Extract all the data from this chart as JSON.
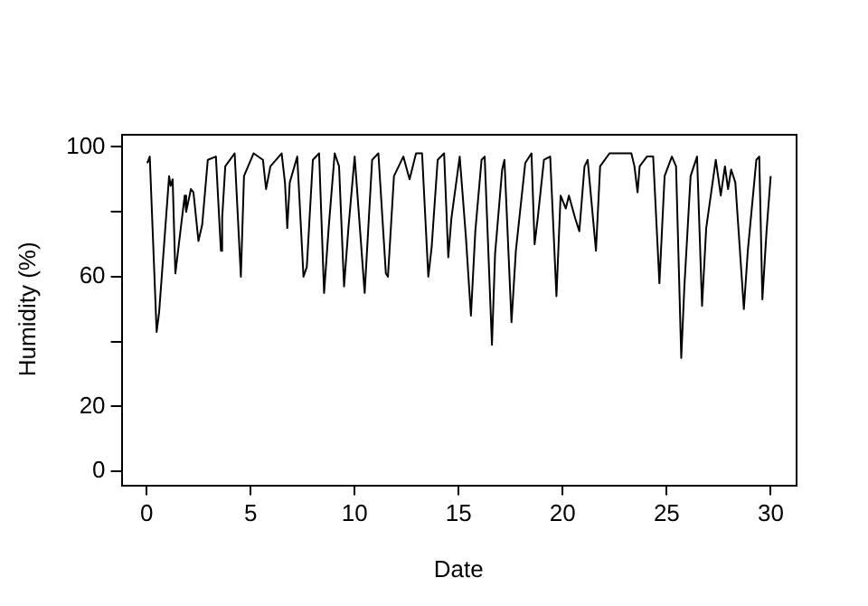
{
  "chart_data": {
    "type": "line",
    "xlabel": "Date",
    "ylabel": "Humidity (%)",
    "xlim": [
      -1.2,
      31.2
    ],
    "ylim": [
      -4,
      104
    ],
    "xticks": [
      0,
      5,
      10,
      15,
      20,
      25,
      30
    ],
    "yticks": [
      0,
      20,
      {
        "value": 40,
        "label": null
      },
      60,
      {
        "value": 80,
        "label": null
      },
      100
    ],
    "grid": false,
    "legend": false,
    "marker": "none",
    "line_style": "solid",
    "series": [
      {
        "color": "#000000",
        "x": [
          0.03,
          0.15,
          0.48,
          0.6,
          1.08,
          1.15,
          1.25,
          1.38,
          1.83,
          1.9,
          2.13,
          2.25,
          2.49,
          2.67,
          2.94,
          3.33,
          3.57,
          3.63,
          3.78,
          4.23,
          4.53,
          4.68,
          5.14,
          5.59,
          5.74,
          5.95,
          6.49,
          6.65,
          6.76,
          6.88,
          7.24,
          7.54,
          7.7,
          7.99,
          8.29,
          8.53,
          8.75,
          9.04,
          9.25,
          9.49,
          9.7,
          10.0,
          10.48,
          10.84,
          11.14,
          11.5,
          11.6,
          11.89,
          12.34,
          12.64,
          12.95,
          13.24,
          13.54,
          13.7,
          13.99,
          14.3,
          14.5,
          14.65,
          15.05,
          15.35,
          15.59,
          15.8,
          16.1,
          16.25,
          16.6,
          16.75,
          17.09,
          17.2,
          17.54,
          17.75,
          18.2,
          18.5,
          18.65,
          18.8,
          19.1,
          19.4,
          19.7,
          19.9,
          20.15,
          20.3,
          20.6,
          20.8,
          21.05,
          21.2,
          21.6,
          21.8,
          22.25,
          23.3,
          23.45,
          23.6,
          23.7,
          24.05,
          24.35,
          24.65,
          24.9,
          25.25,
          25.45,
          25.7,
          25.85,
          26.15,
          26.46,
          26.7,
          26.9,
          27.36,
          27.6,
          27.8,
          27.95,
          28.1,
          28.3,
          28.71,
          28.9,
          29.31,
          29.45,
          29.6,
          29.8,
          30.0
        ],
        "values": [
          95,
          97,
          43,
          49,
          91,
          88,
          90,
          61,
          85,
          80,
          87,
          86,
          71,
          76,
          96,
          97,
          68,
          78,
          94,
          98,
          60,
          91,
          98,
          96,
          87,
          94,
          98,
          89,
          75,
          89,
          97,
          60,
          63,
          96,
          98,
          55,
          75,
          98,
          94,
          57,
          75,
          97,
          55,
          96,
          98,
          61,
          60,
          91,
          97,
          90,
          98,
          98,
          60,
          69,
          96,
          98,
          66,
          78,
          97,
          72,
          48,
          74,
          96,
          97,
          39,
          67,
          93,
          96,
          46,
          68,
          95,
          98,
          70,
          78,
          96,
          97,
          54,
          85,
          81,
          85,
          78,
          74,
          94,
          96,
          68,
          94,
          98,
          98,
          94,
          86,
          94,
          97,
          97,
          58,
          91,
          97,
          94,
          35,
          57,
          91,
          97,
          51,
          75,
          96,
          85,
          94,
          87,
          93,
          89,
          50,
          68,
          96,
          97,
          53,
          74,
          91
        ]
      }
    ]
  }
}
